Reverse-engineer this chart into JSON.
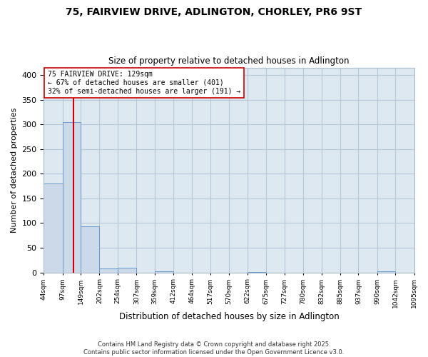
{
  "title": "75, FAIRVIEW DRIVE, ADLINGTON, CHORLEY, PR6 9ST",
  "subtitle": "Size of property relative to detached houses in Adlington",
  "xlabel": "Distribution of detached houses by size in Adlington",
  "ylabel": "Number of detached properties",
  "footer_line1": "Contains HM Land Registry data © Crown copyright and database right 2025.",
  "footer_line2": "Contains public sector information licensed under the Open Government Licence v3.0.",
  "annotation_line1": "75 FAIRVIEW DRIVE: 129sqm",
  "annotation_line2": "← 67% of detached houses are smaller (401)",
  "annotation_line3": "32% of semi-detached houses are larger (191) →",
  "property_size": 129,
  "bar_edges": [
    44,
    97,
    149,
    202,
    254,
    307,
    359,
    412,
    464,
    517,
    570,
    622,
    675,
    727,
    780,
    832,
    885,
    937,
    990,
    1042,
    1095
  ],
  "bar_heights": [
    180,
    305,
    93,
    8,
    10,
    0,
    2,
    0,
    0,
    0,
    0,
    1,
    0,
    0,
    0,
    0,
    0,
    0,
    2,
    0,
    0
  ],
  "bar_color": "#ccd9e8",
  "bar_edge_color": "#6699cc",
  "marker_line_color": "#cc0000",
  "background_color": "#ffffff",
  "plot_bg_color": "#dde8f0",
  "grid_color": "#b8c8d8",
  "ylim": [
    0,
    415
  ],
  "yticks": [
    0,
    50,
    100,
    150,
    200,
    250,
    300,
    350,
    400
  ]
}
